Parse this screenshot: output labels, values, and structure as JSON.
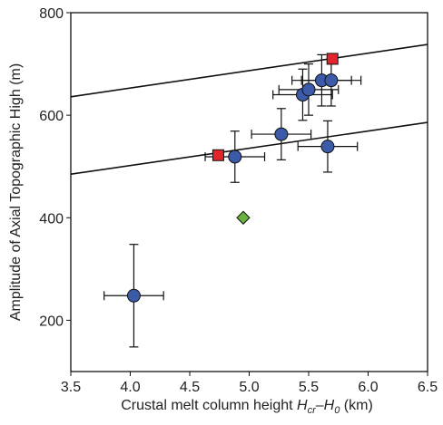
{
  "chart_data": {
    "type": "scatter",
    "ylabel": "Amplitude of Axial Topographic High (m)",
    "xlabel": [
      "Crustal melt column height ",
      "H",
      "cr",
      "–H",
      "0",
      " (km)"
    ],
    "xlim": [
      3.5,
      6.5
    ],
    "ylim": [
      100,
      800
    ],
    "xticks": [
      3.5,
      {
        "value": 4,
        "label": "4.0"
      },
      4.5,
      {
        "value": 5,
        "label": "5.0"
      },
      5.5,
      {
        "value": 6,
        "label": "6.0"
      },
      6.5
    ],
    "yticks": [
      200,
      400,
      600,
      800
    ],
    "series": [
      {
        "type": "line",
        "color": "#111111",
        "x": [
          3.5,
          6.5
        ],
        "values": [
          636,
          738
        ]
      },
      {
        "type": "line",
        "color": "#111111",
        "x": [
          3.5,
          6.5
        ],
        "values": [
          485,
          586
        ]
      },
      {
        "type": "scatter",
        "marker": "circle",
        "color": "#3b5aa8",
        "x": [
          4.03,
          4.88,
          5.27,
          5.45,
          5.5,
          5.61,
          5.69,
          5.66
        ],
        "values": [
          248,
          519,
          563,
          640,
          650,
          668,
          668,
          539
        ],
        "xerr": [
          0.25,
          0.25,
          0.25,
          0.25,
          0.25,
          0.25,
          0.25,
          0.25
        ],
        "yerr": [
          100,
          50,
          50,
          50,
          50,
          50,
          50,
          50
        ]
      },
      {
        "type": "scatter",
        "marker": "square",
        "color": "#e3242b",
        "x": [
          4.74,
          5.7
        ],
        "values": [
          522,
          710
        ]
      },
      {
        "type": "scatter",
        "marker": "diamond",
        "color": "#6ab23e",
        "x": [
          4.95
        ],
        "values": [
          400
        ]
      }
    ]
  }
}
